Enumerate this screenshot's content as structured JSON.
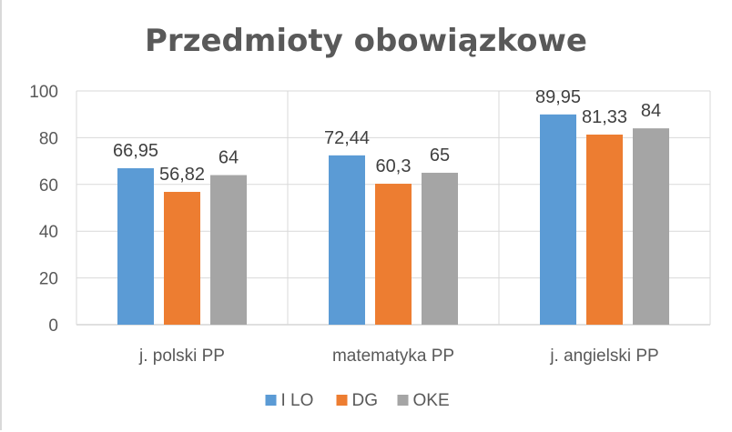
{
  "chart_data": {
    "type": "bar",
    "title": "Przedmioty obowiązkowe",
    "categories": [
      "j. polski PP",
      "matematyka PP",
      "j. angielski PP"
    ],
    "series": [
      {
        "name": "I LO",
        "values": [
          66.95,
          72.44,
          89.95
        ],
        "labels": [
          "66,95",
          "72,44",
          "89,95"
        ],
        "color": "#5b9bd5"
      },
      {
        "name": "DG",
        "values": [
          56.82,
          60.3,
          81.33
        ],
        "labels": [
          "56,82",
          "60,3",
          "81,33"
        ],
        "color": "#ed7d31"
      },
      {
        "name": "OKE",
        "values": [
          64,
          65,
          84
        ],
        "labels": [
          "64",
          "65",
          "84"
        ],
        "color": "#a5a5a5"
      }
    ],
    "ylim": [
      0,
      100
    ],
    "yticks": [
      0,
      20,
      40,
      60,
      80,
      100
    ],
    "grid": true,
    "legend": "bottom",
    "xlabel": "",
    "ylabel": ""
  }
}
